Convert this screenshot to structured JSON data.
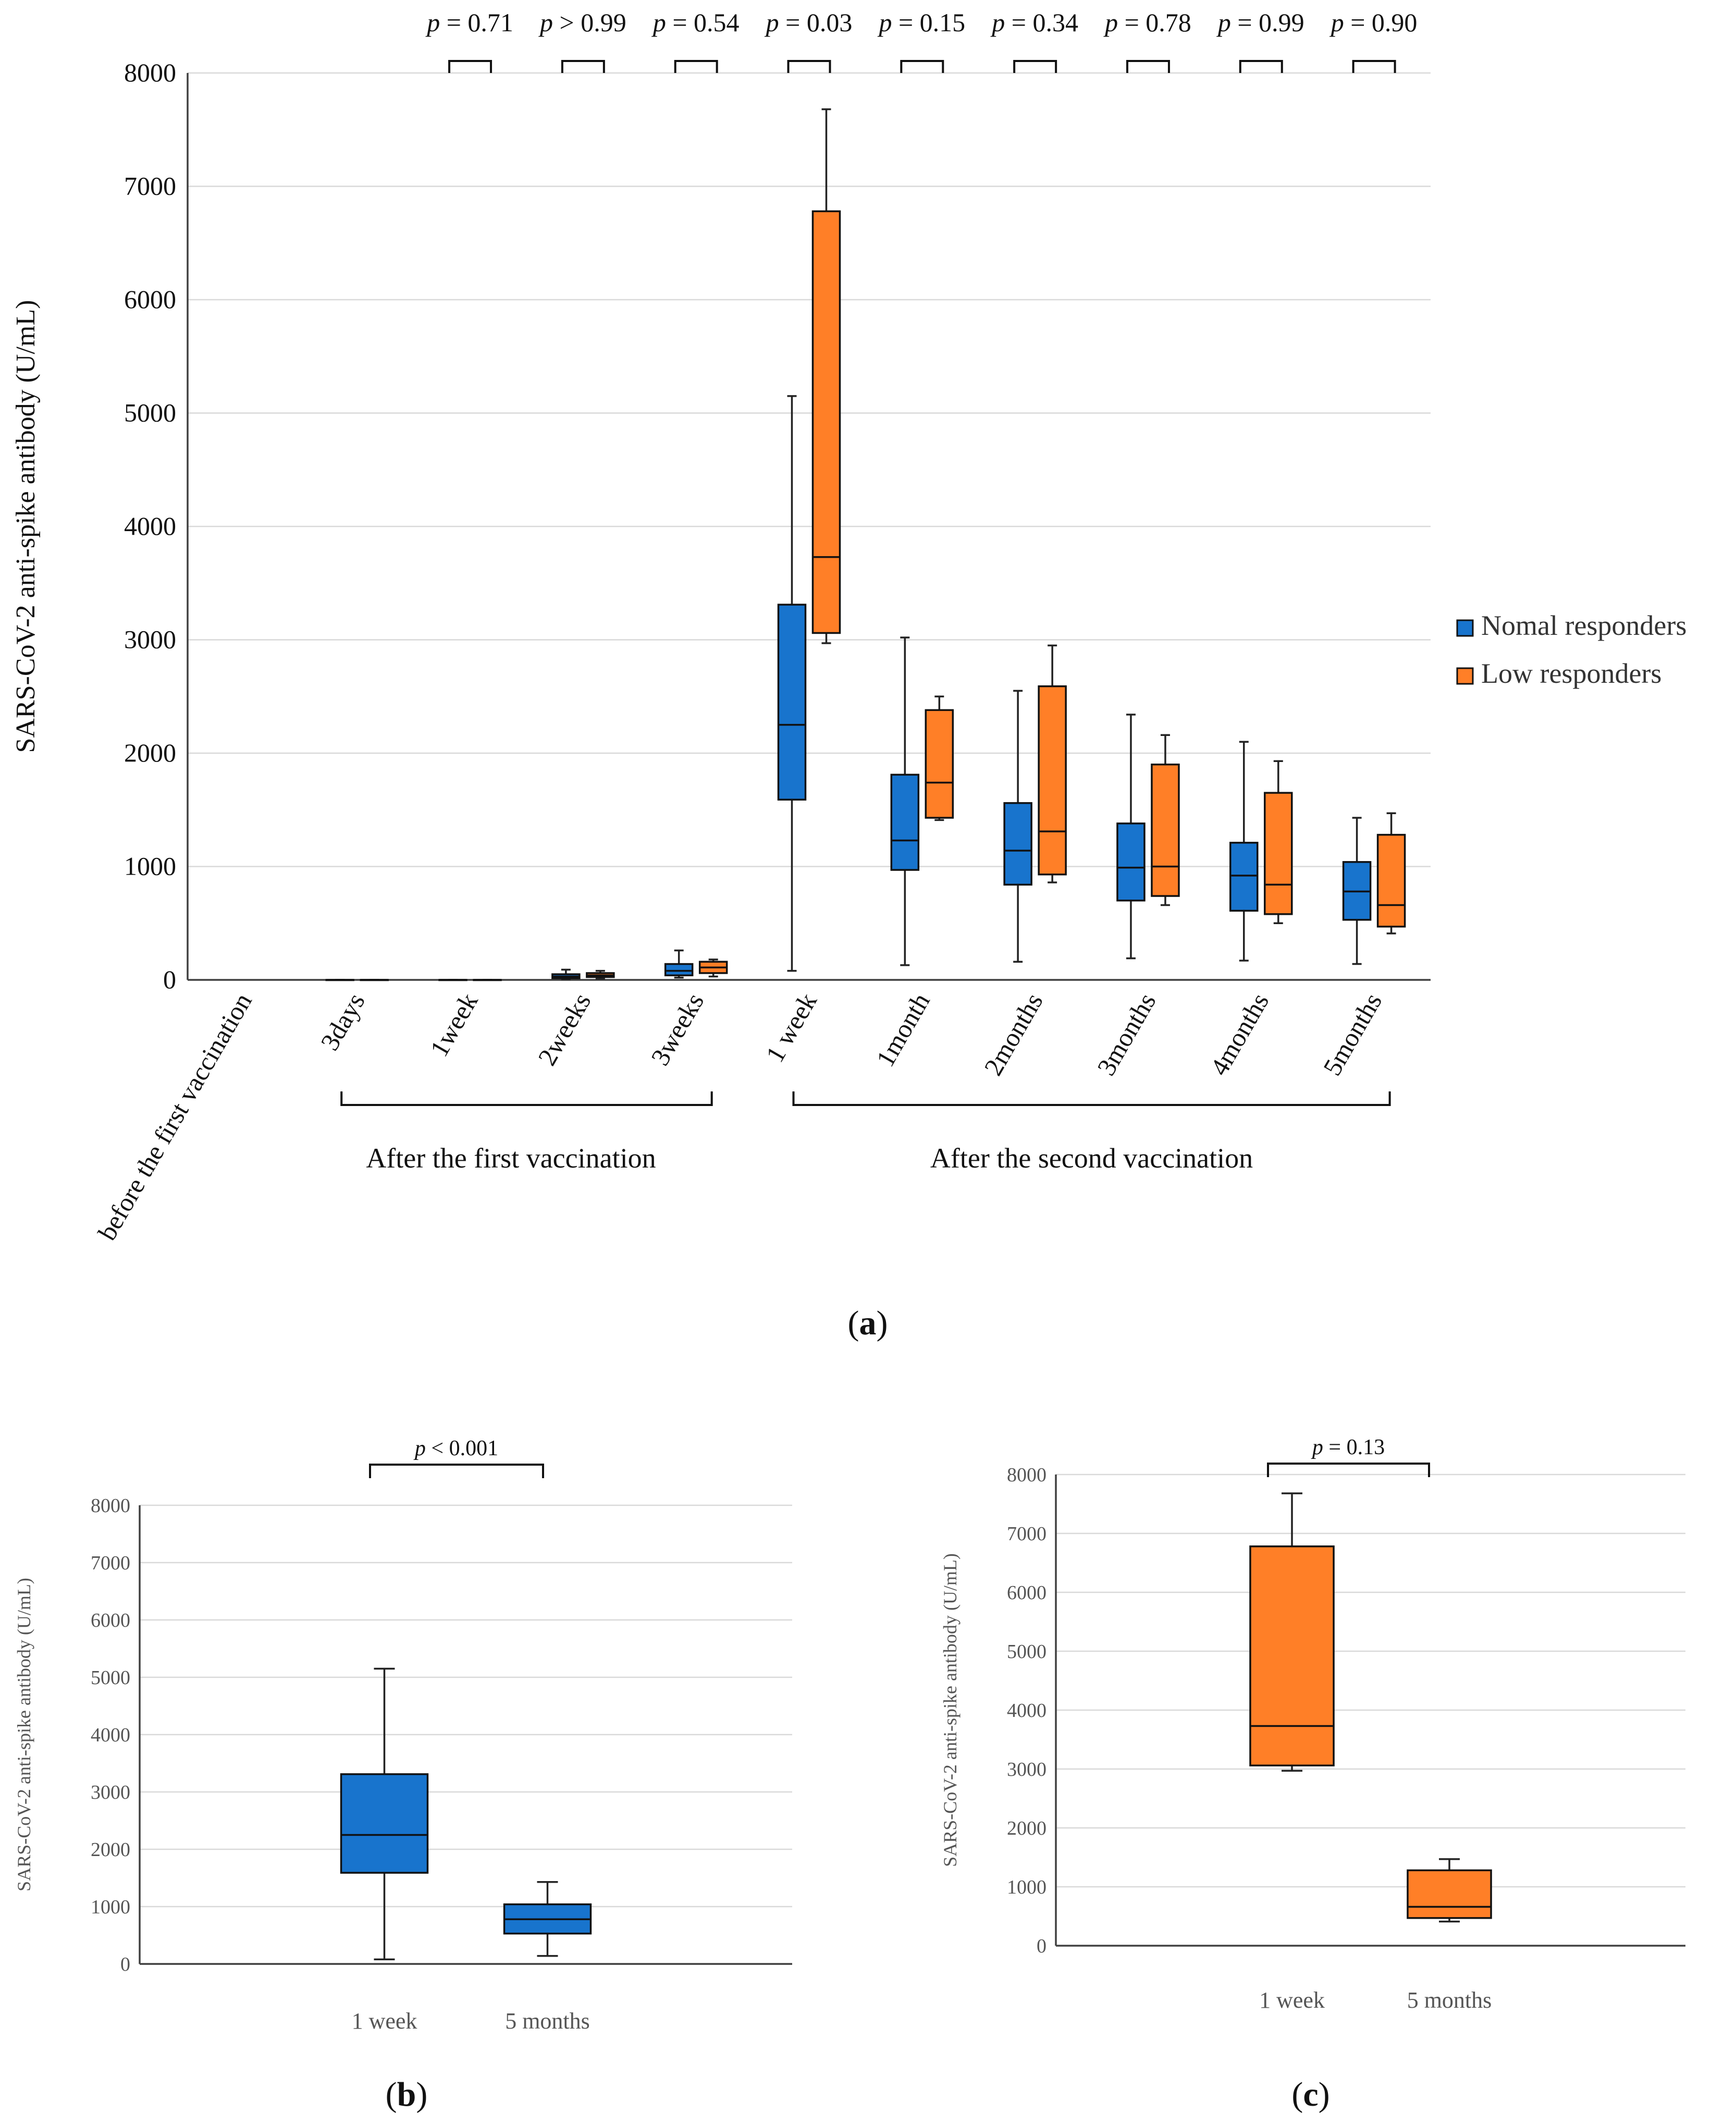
{
  "colors": {
    "normal": "#1874cd",
    "low": "#ff7f27"
  },
  "chart_data": [
    {
      "panel": "a",
      "type": "box",
      "ylabel": "SARS-CoV-2 anti-spike antibody (U/mL)",
      "ylim": [
        0,
        8000
      ],
      "yticks": [
        "0",
        "1000",
        "2000",
        "3000",
        "4000",
        "5000",
        "6000",
        "7000",
        "8000"
      ],
      "categories": [
        "before the first vaccination",
        "3days",
        "1week",
        "2weeks",
        "3weeks",
        "1 week",
        "1month",
        "2months",
        "3months",
        "4months",
        "5months"
      ],
      "groups": [
        {
          "label": "After the first vaccination",
          "from": 1,
          "to": 4
        },
        {
          "label": "After the second vaccination",
          "from": 5,
          "to": 10
        }
      ],
      "p_values": [
        {
          "cat": 2,
          "p": "p",
          "rest": " = 0.71"
        },
        {
          "cat": 3,
          "p": "p",
          "rest": " > 0.99"
        },
        {
          "cat": 4,
          "p": "p",
          "rest": " = 0.54"
        },
        {
          "cat": 5,
          "p": "p",
          "rest": " = 0.03"
        },
        {
          "cat": 6,
          "p": "p",
          "rest": " = 0.15"
        },
        {
          "cat": 7,
          "p": "p",
          "rest": " = 0.34"
        },
        {
          "cat": 8,
          "p": "p",
          "rest": " = 0.78"
        },
        {
          "cat": 9,
          "p": "p",
          "rest": " = 0.99"
        },
        {
          "cat": 10,
          "p": "p",
          "rest": " = 0.90"
        }
      ],
      "legend": {
        "position": "right",
        "entries": [
          "Nomal responders",
          "Low responders"
        ]
      },
      "series": [
        {
          "name": "Nomal responders",
          "boxes": [
            null,
            [
              0,
              0,
              0,
              0,
              0
            ],
            [
              0,
              0,
              0,
              0,
              0
            ],
            [
              5,
              15,
              30,
              50,
              90
            ],
            [
              20,
              40,
              80,
              140,
              260
            ],
            [
              80,
              1590,
              2250,
              3310,
              5150
            ],
            [
              130,
              970,
              1230,
              1810,
              3020
            ],
            [
              160,
              840,
              1140,
              1560,
              2550
            ],
            [
              190,
              700,
              990,
              1380,
              2340
            ],
            [
              170,
              610,
              920,
              1210,
              2100
            ],
            [
              140,
              530,
              780,
              1040,
              1430
            ]
          ]
        },
        {
          "name": "Low responders",
          "boxes": [
            null,
            [
              0,
              0,
              0,
              0,
              0
            ],
            [
              0,
              0,
              0,
              0,
              0
            ],
            [
              10,
              25,
              40,
              60,
              80
            ],
            [
              30,
              60,
              110,
              160,
              180
            ],
            [
              2970,
              3060,
              3730,
              6780,
              7680
            ],
            [
              1410,
              1430,
              1740,
              2380,
              2500
            ],
            [
              860,
              930,
              1310,
              2590,
              2950
            ],
            [
              660,
              740,
              1000,
              1900,
              2160
            ],
            [
              500,
              580,
              840,
              1650,
              1930
            ],
            [
              410,
              470,
              660,
              1280,
              1470
            ]
          ]
        }
      ],
      "panel_label": "a"
    },
    {
      "panel": "b",
      "type": "box",
      "ylabel": "SARS-CoV-2 anti-spike antibody (U/mL)",
      "ylim": [
        0,
        8000
      ],
      "yticks": [
        "0",
        "1000",
        "2000",
        "3000",
        "4000",
        "5000",
        "6000",
        "7000",
        "8000"
      ],
      "categories": [
        "1 week",
        "5 months"
      ],
      "color_series": "normal",
      "boxes": [
        [
          80,
          1590,
          2250,
          3310,
          5150
        ],
        [
          140,
          530,
          780,
          1040,
          1430
        ]
      ],
      "p_value": {
        "p": "p",
        "rest": " < 0.001"
      },
      "panel_label": "b"
    },
    {
      "panel": "c",
      "type": "box",
      "ylabel": "SARS-CoV-2 anti-spike antibody (U/mL)",
      "ylim": [
        0,
        8000
      ],
      "yticks": [
        "0",
        "1000",
        "2000",
        "3000",
        "4000",
        "5000",
        "6000",
        "7000",
        "8000"
      ],
      "categories": [
        "1 week",
        "5 months"
      ],
      "color_series": "low",
      "boxes": [
        [
          2970,
          3060,
          3730,
          6780,
          7680
        ],
        [
          410,
          470,
          660,
          1280,
          1470
        ]
      ],
      "p_value": {
        "p": "p",
        "rest": " = 0.13"
      },
      "panel_label": "c"
    }
  ]
}
